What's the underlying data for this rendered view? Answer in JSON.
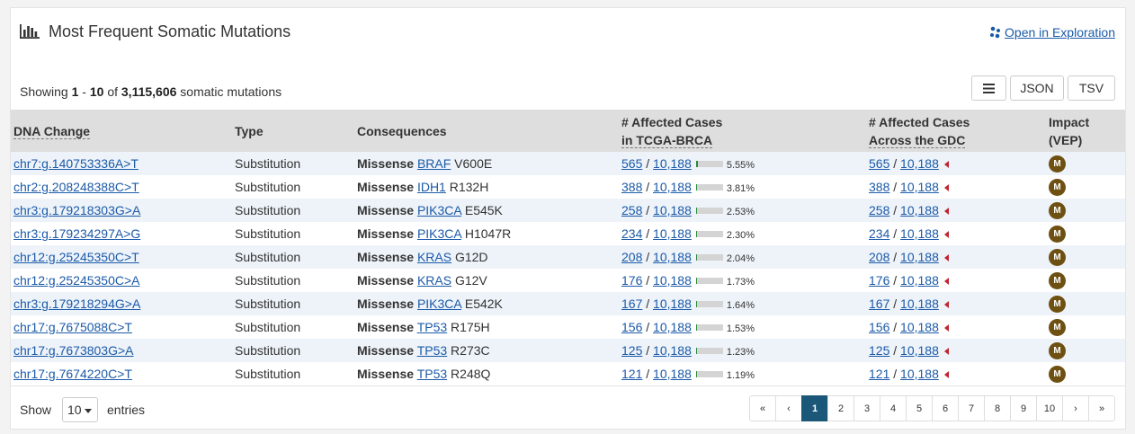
{
  "panel": {
    "title": "Most Frequent Somatic Mutations",
    "title_icon": "bar-chart-icon",
    "explore_link": "Open in Exploration",
    "explore_icon": "cohort-dots-icon"
  },
  "summary": {
    "prefix": "Showing",
    "from": "1",
    "dash": "-",
    "to": "10",
    "of": "of",
    "total": "3,115,606",
    "suffix": "somatic mutations"
  },
  "toolbar": {
    "menu_icon": "hamburger-icon",
    "json_label": "JSON",
    "tsv_label": "TSV"
  },
  "table": {
    "headers": {
      "dna_change": "DNA Change",
      "type": "Type",
      "consequences": "Consequences",
      "affected_project_l1": "# Affected Cases",
      "affected_project_l2": "in TCGA-BRCA",
      "affected_gdc_l1": "# Affected Cases",
      "affected_gdc_l2": "Across the GDC",
      "impact_l1": "Impact",
      "impact_l2": "(VEP)"
    },
    "rows": [
      {
        "dna": "chr7:g.140753336A>T",
        "type": "Substitution",
        "cons": "Missense",
        "gene": "BRAF",
        "aa": "V600E",
        "cases": "565",
        "total": "10,188",
        "pct": "5.55%",
        "frac": 0.0555,
        "gdc_cases": "565",
        "gdc_total": "10,188",
        "impact": "M"
      },
      {
        "dna": "chr2:g.208248388C>T",
        "type": "Substitution",
        "cons": "Missense",
        "gene": "IDH1",
        "aa": "R132H",
        "cases": "388",
        "total": "10,188",
        "pct": "3.81%",
        "frac": 0.0381,
        "gdc_cases": "388",
        "gdc_total": "10,188",
        "impact": "M"
      },
      {
        "dna": "chr3:g.179218303G>A",
        "type": "Substitution",
        "cons": "Missense",
        "gene": "PIK3CA",
        "aa": "E545K",
        "cases": "258",
        "total": "10,188",
        "pct": "2.53%",
        "frac": 0.0253,
        "gdc_cases": "258",
        "gdc_total": "10,188",
        "impact": "M"
      },
      {
        "dna": "chr3:g.179234297A>G",
        "type": "Substitution",
        "cons": "Missense",
        "gene": "PIK3CA",
        "aa": "H1047R",
        "cases": "234",
        "total": "10,188",
        "pct": "2.30%",
        "frac": 0.023,
        "gdc_cases": "234",
        "gdc_total": "10,188",
        "impact": "M"
      },
      {
        "dna": "chr12:g.25245350C>T",
        "type": "Substitution",
        "cons": "Missense",
        "gene": "KRAS",
        "aa": "G12D",
        "cases": "208",
        "total": "10,188",
        "pct": "2.04%",
        "frac": 0.0204,
        "gdc_cases": "208",
        "gdc_total": "10,188",
        "impact": "M"
      },
      {
        "dna": "chr12:g.25245350C>A",
        "type": "Substitution",
        "cons": "Missense",
        "gene": "KRAS",
        "aa": "G12V",
        "cases": "176",
        "total": "10,188",
        "pct": "1.73%",
        "frac": 0.0173,
        "gdc_cases": "176",
        "gdc_total": "10,188",
        "impact": "M"
      },
      {
        "dna": "chr3:g.179218294G>A",
        "type": "Substitution",
        "cons": "Missense",
        "gene": "PIK3CA",
        "aa": "E542K",
        "cases": "167",
        "total": "10,188",
        "pct": "1.64%",
        "frac": 0.0164,
        "gdc_cases": "167",
        "gdc_total": "10,188",
        "impact": "M"
      },
      {
        "dna": "chr17:g.7675088C>T",
        "type": "Substitution",
        "cons": "Missense",
        "gene": "TP53",
        "aa": "R175H",
        "cases": "156",
        "total": "10,188",
        "pct": "1.53%",
        "frac": 0.0153,
        "gdc_cases": "156",
        "gdc_total": "10,188",
        "impact": "M"
      },
      {
        "dna": "chr17:g.7673803G>A",
        "type": "Substitution",
        "cons": "Missense",
        "gene": "TP53",
        "aa": "R273C",
        "cases": "125",
        "total": "10,188",
        "pct": "1.23%",
        "frac": 0.0123,
        "gdc_cases": "125",
        "gdc_total": "10,188",
        "impact": "M"
      },
      {
        "dna": "chr17:g.7674220C>T",
        "type": "Substitution",
        "cons": "Missense",
        "gene": "TP53",
        "aa": "R248Q",
        "cases": "121",
        "total": "10,188",
        "pct": "1.19%",
        "frac": 0.0119,
        "gdc_cases": "121",
        "gdc_total": "10,188",
        "impact": "M"
      }
    ],
    "separator": "/"
  },
  "footer": {
    "show_label": "Show",
    "page_size": "10",
    "entries_label": "entries",
    "pages": [
      "«",
      "‹",
      "1",
      "2",
      "3",
      "4",
      "5",
      "6",
      "7",
      "8",
      "9",
      "10",
      "›",
      "»"
    ],
    "active_page": "1"
  },
  "colors": {
    "link": "#1c5aa8",
    "active_page": "#1a5779",
    "impact_badge": "#6d5012",
    "bar_fill": "#2c8a3c",
    "caret": "#c0242f",
    "row_stripe": "#edf3f9",
    "header_bg": "#dedede"
  }
}
